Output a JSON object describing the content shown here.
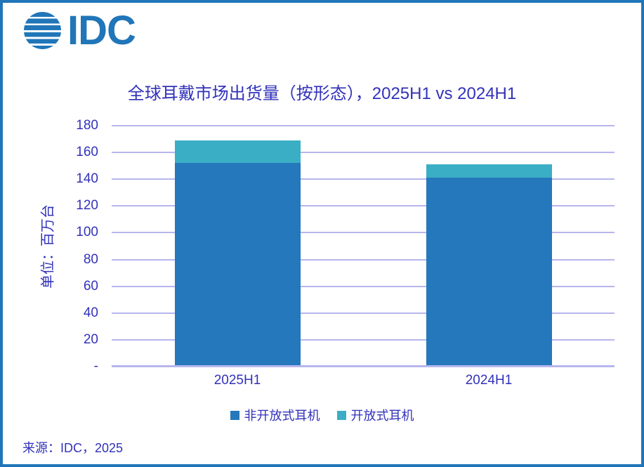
{
  "logo": {
    "text": "IDC"
  },
  "source": "来源：IDC，2025",
  "theme": {
    "accent": "#2076b8",
    "text": "#3232ba",
    "grid": "#b7b6ed",
    "background": "#ffffff"
  },
  "chart_data": {
    "type": "bar",
    "stacked": true,
    "title": "全球耳戴市场出货量（按形态），2025H1 vs 2024H1",
    "ylabel": "单位：百万台",
    "xlabel": "",
    "categories": [
      "2025H1",
      "2024H1"
    ],
    "series": [
      {
        "name": "非开放式耳机",
        "color": "#2478bb",
        "values": [
          152,
          141
        ]
      },
      {
        "name": "开放式耳机",
        "color": "#3aaec5",
        "values": [
          17,
          10
        ]
      }
    ],
    "totals": [
      169,
      151
    ],
    "ylim": [
      0,
      180
    ],
    "ytick_step": 20,
    "ytick_labels": [
      "-",
      "20",
      "40",
      "60",
      "80",
      "100",
      "120",
      "140",
      "160",
      "180"
    ],
    "grid": true,
    "legend_position": "bottom",
    "bar_width_ratio": 0.25
  }
}
